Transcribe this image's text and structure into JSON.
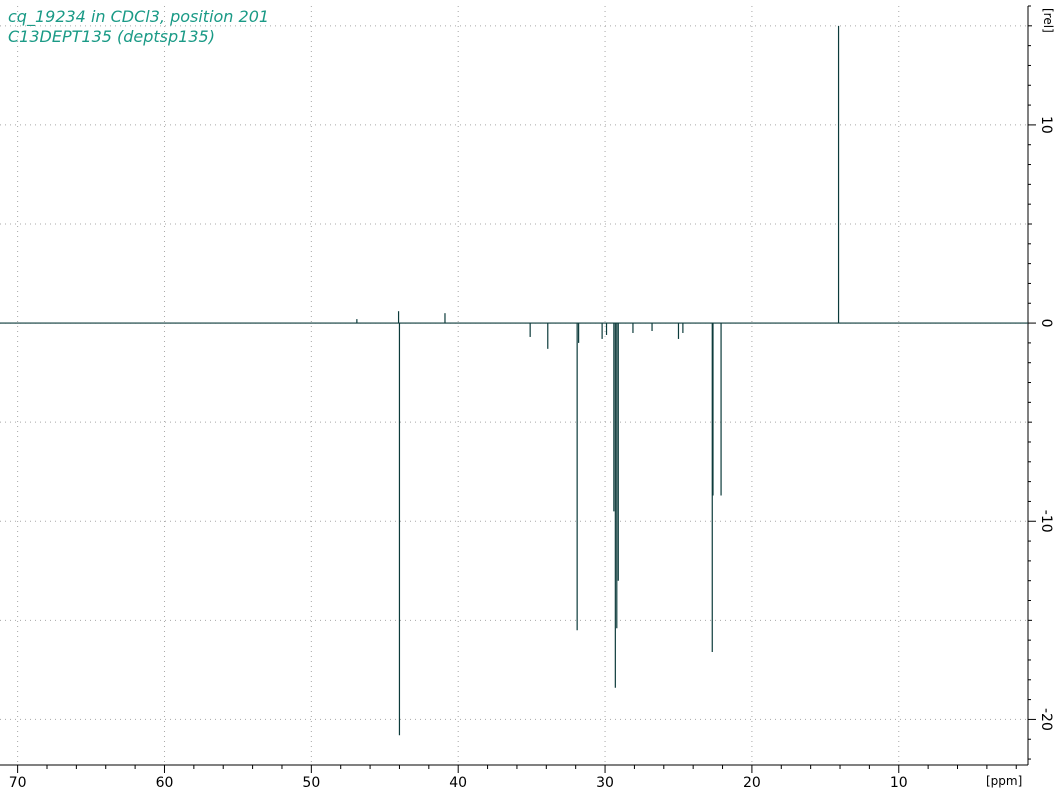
{
  "chart_data": {
    "type": "line",
    "title_lines": [
      "cq_19234 in CDCl3, position 201",
      "C13DEPT135 (deptsp135)"
    ],
    "x_unit": "[ppm]",
    "y_unit": "[rel]",
    "xlim": [
      71.2,
      1.2
    ],
    "ylim": [
      -22.3,
      16.0
    ],
    "x_major_ticks": [
      70,
      60,
      50,
      40,
      30,
      20,
      10
    ],
    "x_minor_step": 2,
    "y_major_ticks": [
      10,
      0,
      -10,
      -20
    ],
    "y_minor_step": 5,
    "grid": true,
    "peaks": [
      {
        "ppm": 44.0,
        "intensity": -20.8
      },
      {
        "ppm": 44.06,
        "intensity": 0.6
      },
      {
        "ppm": 40.9,
        "intensity": 0.5
      },
      {
        "ppm": 46.9,
        "intensity": 0.2
      },
      {
        "ppm": 35.1,
        "intensity": -0.7
      },
      {
        "ppm": 33.9,
        "intensity": -1.3
      },
      {
        "ppm": 31.9,
        "intensity": -15.5
      },
      {
        "ppm": 31.8,
        "intensity": -1.0
      },
      {
        "ppm": 30.2,
        "intensity": -0.8
      },
      {
        "ppm": 29.9,
        "intensity": -0.6
      },
      {
        "ppm": 29.4,
        "intensity": -9.5
      },
      {
        "ppm": 29.3,
        "intensity": -18.4
      },
      {
        "ppm": 29.2,
        "intensity": -15.4
      },
      {
        "ppm": 29.1,
        "intensity": -13.0
      },
      {
        "ppm": 28.1,
        "intensity": -0.5
      },
      {
        "ppm": 26.8,
        "intensity": -0.4
      },
      {
        "ppm": 25.0,
        "intensity": -0.8
      },
      {
        "ppm": 24.7,
        "intensity": -0.5
      },
      {
        "ppm": 22.7,
        "intensity": -16.6
      },
      {
        "ppm": 22.65,
        "intensity": -8.7
      },
      {
        "ppm": 22.1,
        "intensity": -8.7
      },
      {
        "ppm": 14.1,
        "intensity": 15.0
      }
    ]
  }
}
